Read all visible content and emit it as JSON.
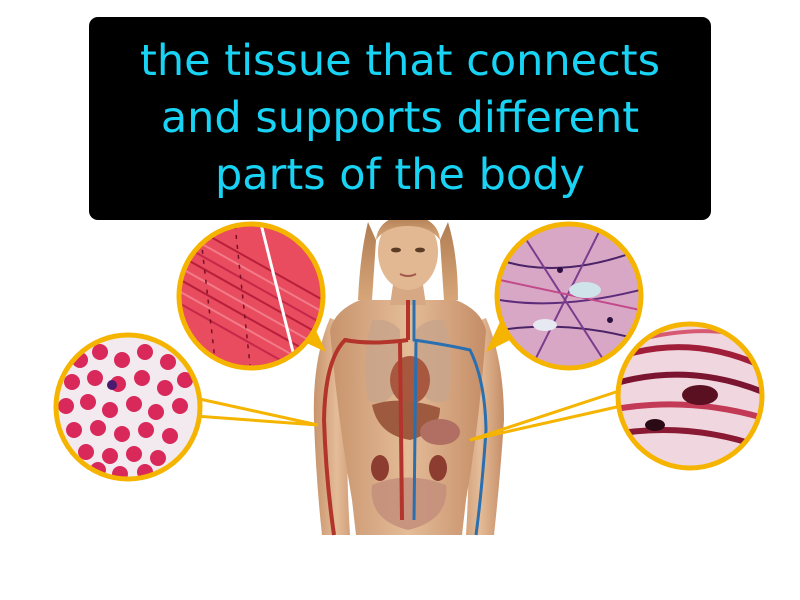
{
  "definition": {
    "lines": [
      "the tissue that connects",
      "and supports different",
      "parts of the body"
    ]
  },
  "colors": {
    "caption_text": "#19d3f5",
    "caption_background": "#000000",
    "callout_border": "#f5b400",
    "background": "#ffffff"
  },
  "callouts": [
    {
      "icon": "red-blood-cells-micrograph-icon"
    },
    {
      "icon": "muscle-fibers-micrograph-icon"
    },
    {
      "icon": "loose-connective-tissue-micrograph-icon"
    },
    {
      "icon": "dense-connective-tissue-micrograph-icon"
    }
  ]
}
